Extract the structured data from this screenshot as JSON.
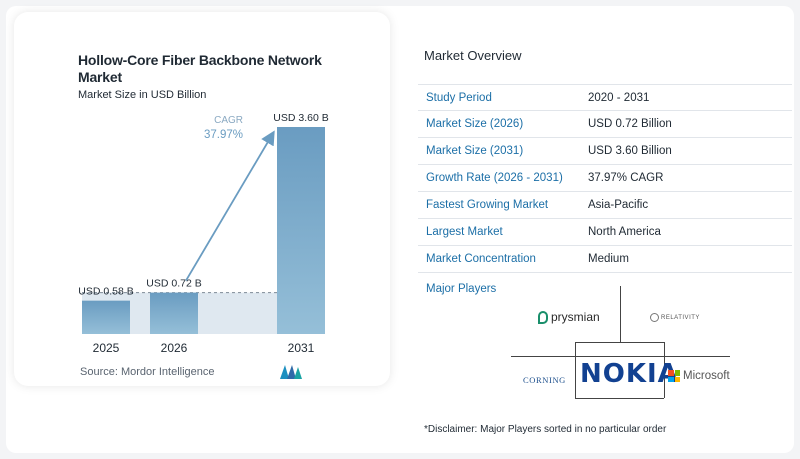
{
  "left": {
    "title": "Hollow-Core Fiber Backbone Network Market",
    "subtitle": "Market Size in USD Billion",
    "source": "Source:  Mordor Intelligence"
  },
  "chart_data": {
    "type": "bar",
    "title": "Hollow-Core Fiber Backbone Network Market",
    "subtitle": "Market Size in USD Billion",
    "categories": [
      "2025",
      "2026",
      "2031"
    ],
    "values": [
      0.58,
      0.72,
      3.6
    ],
    "data_labels": [
      "USD 0.58 B",
      "USD 0.72 B",
      "USD 3.60 B"
    ],
    "cagr_label": "CAGR",
    "cagr_value": "37.97%",
    "ylim": [
      0,
      3.6
    ],
    "colors": {
      "bar_top": "#6a9cc1",
      "bar_bottom": "#95bfd8",
      "arrow": "#6a9cc1",
      "band": "#dfe8f0"
    }
  },
  "overview": {
    "title": "Market Overview",
    "rows": [
      {
        "key": "Study Period",
        "value": "2020 - 2031"
      },
      {
        "key": "Market Size (2026)",
        "value": "USD 0.72 Billion"
      },
      {
        "key": "Market Size (2031)",
        "value": "USD 3.60 Billion"
      },
      {
        "key": "Growth Rate (2026 - 2031)",
        "value": "37.97% CAGR"
      },
      {
        "key": "Fastest Growing Market",
        "value": "Asia-Pacific"
      },
      {
        "key": "Largest Market",
        "value": "North America"
      },
      {
        "key": "Market Concentration",
        "value": "Medium"
      }
    ]
  },
  "players": {
    "title": "Major Players",
    "logos": {
      "prysmian": "prysmian",
      "relativity": "RELATIVITY",
      "nokia": "NOKIA",
      "corning": "CORNING",
      "microsoft": "Microsoft"
    }
  },
  "disclaimer": "*Disclaimer: Major Players sorted in no particular order"
}
